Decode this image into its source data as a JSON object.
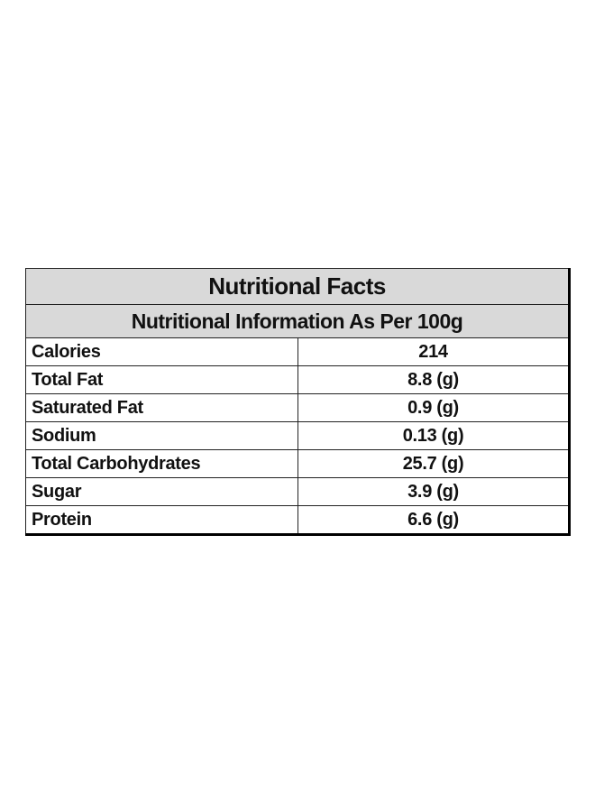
{
  "table": {
    "title": "Nutritional Facts",
    "subtitle": "Nutritional Information As Per 100g",
    "rows": [
      [
        "Calories",
        "214"
      ],
      [
        "Total Fat",
        "8.8 (g)"
      ],
      [
        "Saturated Fat",
        "0.9 (g)"
      ],
      [
        "Sodium",
        "0.13 (g)"
      ],
      [
        "Total Carbohydrates",
        "25.7 (g)"
      ],
      [
        "Sugar",
        "3.9 (g)"
      ],
      [
        "Protein",
        "6.6 (g)"
      ]
    ]
  }
}
